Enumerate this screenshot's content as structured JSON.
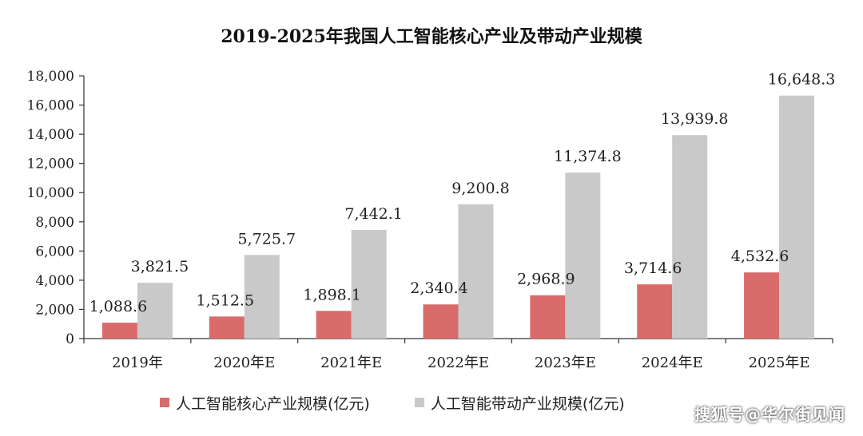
{
  "colors": {
    "core": "#d96b6b",
    "driven": "#c9c9c9",
    "axis": "#333333",
    "text": "#222222"
  },
  "watermark": "搜狐号@华尔街见闻",
  "chart_data": {
    "type": "bar",
    "title": "2019-2025年我国人工智能核心产业及带动产业规模",
    "xlabel": "",
    "ylabel": "",
    "ylim": [
      0,
      18000
    ],
    "yticks": [
      0,
      2000,
      4000,
      6000,
      8000,
      10000,
      12000,
      14000,
      16000,
      18000
    ],
    "ytick_labels": [
      "0",
      "2,000",
      "4,000",
      "6,000",
      "8,000",
      "10,000",
      "12,000",
      "14,000",
      "16,000",
      "18,000"
    ],
    "categories": [
      "2019年",
      "2020年E",
      "2021年E",
      "2022年E",
      "2023年E",
      "2024年E",
      "2025年E"
    ],
    "grid": false,
    "legend_position": "bottom",
    "series": [
      {
        "name": "人工智能核心产业规模(亿元)",
        "values": [
          1088.6,
          1512.5,
          1898.1,
          2340.4,
          2968.9,
          3714.6,
          4532.6
        ],
        "labels": [
          "1,088.6",
          "1,512.5",
          "1,898.1",
          "2,340.4",
          "2,968.9",
          "3,714.6",
          "4,532.6"
        ]
      },
      {
        "name": "人工智能带动产业规模(亿元)",
        "values": [
          3821.5,
          5725.7,
          7442.1,
          9200.8,
          11374.8,
          13939.8,
          16648.3
        ],
        "labels": [
          "3,821.5",
          "5,725.7",
          "7,442.1",
          "9,200.8",
          "11,374.8",
          "13,939.8",
          "16,648.3"
        ]
      }
    ]
  }
}
